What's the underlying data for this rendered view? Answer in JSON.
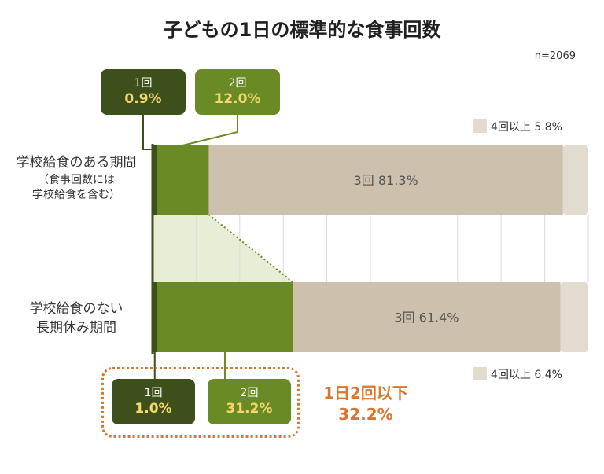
{
  "title": "子どもの1日の標準的な食事回数",
  "n_label": "n=2069",
  "chart_data": {
    "type": "bar",
    "orientation": "horizontal",
    "stacked": true,
    "xlim": [
      0,
      100
    ],
    "grid": true,
    "categories": [
      {
        "label": "学校給食のある期間",
        "sublabel_1": "（食事回数には",
        "sublabel_2": "学校給食を含む）"
      },
      {
        "label_1": "学校給食のない",
        "label_2": "長期休み期間"
      }
    ],
    "series": [
      {
        "name": "1回",
        "values": [
          0.9,
          1.0
        ],
        "value_labels": [
          "0.9%",
          "1.0%"
        ],
        "color": "#3d4f1a"
      },
      {
        "name": "2回",
        "values": [
          12.0,
          31.2
        ],
        "value_labels": [
          "12.0%",
          "31.2%"
        ],
        "color": "#6a8a26"
      },
      {
        "name": "3回",
        "values": [
          81.3,
          61.4
        ],
        "value_labels": [
          "3回 81.3%",
          "3回 61.4%"
        ],
        "color": "#cdc1ad"
      },
      {
        "name": "4回以上",
        "values": [
          5.8,
          6.4
        ],
        "value_labels": [
          "4回以上 5.8%",
          "4回以上 6.4%"
        ],
        "color": "#e1dbd0"
      }
    ],
    "summary": {
      "label": "1日2回以下",
      "value": "32.2%"
    }
  },
  "colors": {
    "accent": "#d9762f",
    "highlight_text": "#f5d86a",
    "connector_fill": "#e8eed6"
  }
}
